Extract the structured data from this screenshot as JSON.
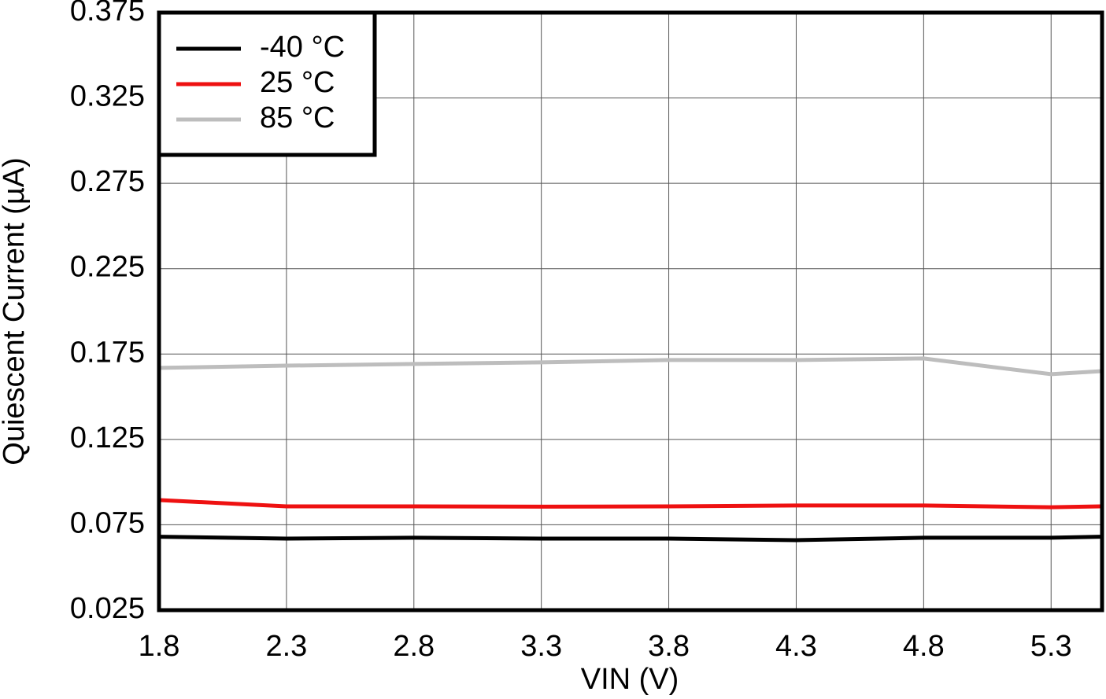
{
  "chart_data": {
    "type": "line",
    "x_label": "VIN (V)",
    "y_label": "Quiescent Current (µA)",
    "x": [
      1.8,
      2.3,
      2.8,
      3.3,
      3.8,
      4.3,
      4.8,
      5.3,
      5.5
    ],
    "series": [
      {
        "name": "-40 °C",
        "color": "#000000",
        "values": [
          0.068,
          0.0669,
          0.0674,
          0.0669,
          0.0669,
          0.066,
          0.0674,
          0.0674,
          0.068
        ]
      },
      {
        "name": "25 °C",
        "color": "#ee1111",
        "values": [
          0.0895,
          0.0858,
          0.0858,
          0.0856,
          0.0858,
          0.0863,
          0.0863,
          0.0853,
          0.0858
        ]
      },
      {
        "name": "85 °C",
        "color": "#bdbdbd",
        "values": [
          0.1669,
          0.1682,
          0.1692,
          0.1701,
          0.1715,
          0.1715,
          0.1724,
          0.1632,
          0.165
        ]
      }
    ],
    "xlim": [
      1.8,
      5.5
    ],
    "ylim": [
      0.025,
      0.375
    ],
    "xticks": [
      1.8,
      2.3,
      2.8,
      3.3,
      3.8,
      4.3,
      4.8,
      5.3
    ],
    "yticks": [
      0.025,
      0.075,
      0.125,
      0.175,
      0.225,
      0.275,
      0.325,
      0.375
    ],
    "grid": true,
    "legend": "upper-left"
  }
}
